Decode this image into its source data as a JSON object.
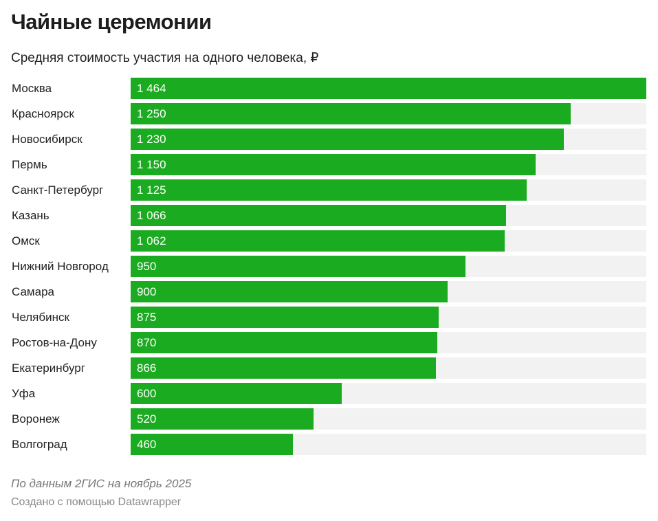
{
  "chart_data": {
    "type": "bar",
    "orientation": "horizontal",
    "title": "Чайные церемонии",
    "subtitle": "Средняя стоимость участия на одного человека, ₽",
    "categories": [
      "Москва",
      "Красноярск",
      "Новосибирск",
      "Пермь",
      "Санкт-Петербург",
      "Казань",
      "Омск",
      "Нижний Новгород",
      "Самара",
      "Челябинск",
      "Ростов-на-Дону",
      "Екатеринбург",
      "Уфа",
      "Воронеж",
      "Волгоград"
    ],
    "values": [
      1464,
      1250,
      1230,
      1150,
      1125,
      1066,
      1062,
      950,
      900,
      875,
      870,
      866,
      600,
      520,
      460
    ],
    "value_labels": [
      "1 464",
      "1 250",
      "1 230",
      "1 150",
      "1 125",
      "1 066",
      "1 062",
      "950",
      "900",
      "875",
      "870",
      "866",
      "600",
      "520",
      "460"
    ],
    "xlim": [
      0,
      1464
    ],
    "grid": false,
    "colors": {
      "bar": "#1aab20",
      "track": "#f2f2f2"
    }
  },
  "footer": {
    "note": "По данным 2ГИС на ноябрь 2025",
    "credit": "Создано с помощью Datawrapper"
  }
}
